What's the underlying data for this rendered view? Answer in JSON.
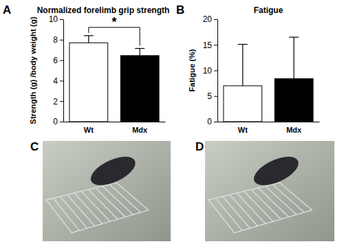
{
  "chart_data": [
    {
      "type": "bar",
      "panel_label": "A",
      "title": "Normalized forelimb grip strength",
      "y_label": "Strength (g) /body weight (g)",
      "categories": [
        "Wt",
        "Mdx"
      ],
      "values": [
        7.7,
        6.45
      ],
      "errors": [
        0.7,
        0.7
      ],
      "colors": [
        "#ffffff",
        "#000000"
      ],
      "ylim": [
        0,
        10
      ],
      "yticks": [
        0,
        2,
        4,
        6,
        8,
        10
      ],
      "annotations": [
        {
          "text": "*",
          "between": [
            "Wt",
            "Mdx"
          ]
        }
      ]
    },
    {
      "type": "bar",
      "panel_label": "B",
      "title": "Fatigue",
      "y_label": "Fatigue (%)",
      "categories": [
        "Wt",
        "Mdx"
      ],
      "values": [
        7.0,
        8.4
      ],
      "errors": [
        8.1,
        8.1
      ],
      "colors": [
        "#ffffff",
        "#000000"
      ],
      "ylim": [
        0,
        20
      ],
      "yticks": [
        0,
        5,
        10,
        15,
        20
      ]
    }
  ],
  "photos": [
    {
      "label": "C"
    },
    {
      "label": "D"
    }
  ]
}
